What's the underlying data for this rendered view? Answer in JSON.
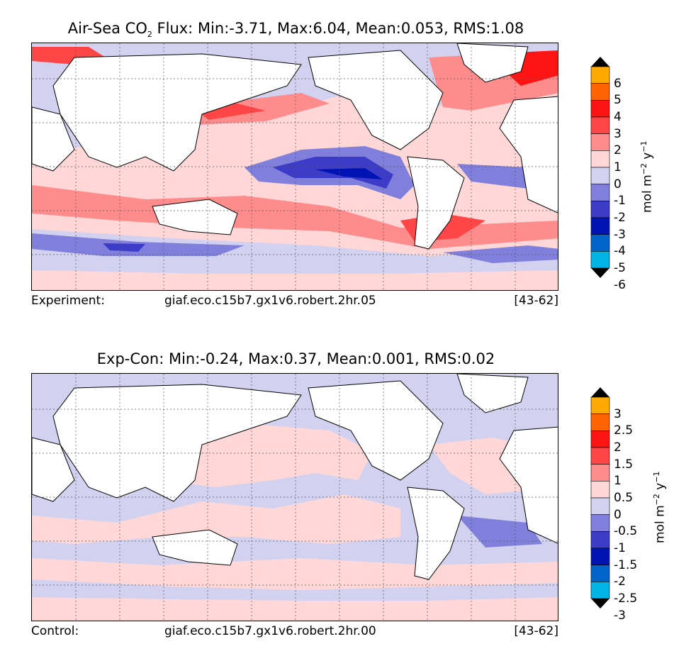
{
  "panels": [
    {
      "title_prefix": "Air-Sea CO",
      "title_sub": "2",
      "title_rest": " Flux: Min:-3.71, Max:6.04, Mean:0.053, RMS:1.08",
      "footer_left": "Experiment:",
      "footer_center": "giaf.eco.c15b7.gx1v6.robert.2hr.05",
      "footer_right": "[43-62]",
      "colorbar_ticks": [
        "6",
        "5",
        "4",
        "3",
        "2",
        "1",
        "0",
        "-1",
        "-2",
        "-3",
        "-4",
        "-5",
        "-6"
      ],
      "colorbar_units": "mol m",
      "colorbar_exp1": "−2",
      "colorbar_mid": " y",
      "colorbar_exp2": "−1"
    },
    {
      "title": "Exp-Con: Min:-0.24, Max:0.37, Mean:0.001, RMS:0.02",
      "footer_left": "Control:",
      "footer_center": "giaf.eco.c15b7.gx1v6.robert.2hr.00",
      "footer_right": "[43-62]",
      "colorbar_ticks": [
        "3",
        "2.5",
        "2",
        "1.5",
        "1",
        "0.5",
        "0",
        "-0.5",
        "-1",
        "-1.5",
        "-2",
        "-2.5",
        "-3"
      ],
      "colorbar_units": "mol m",
      "colorbar_exp1": "−2",
      "colorbar_mid": " y",
      "colorbar_exp2": "−1"
    }
  ],
  "colormap": [
    "#00ffff",
    "#00b4e6",
    "#0064c8",
    "#0014b4",
    "#3c3cc8",
    "#8080dc",
    "#d2d2f0",
    "#ffd7d7",
    "#ff8c8c",
    "#ff4646",
    "#ff1414",
    "#ff6400",
    "#ffaa00",
    "#ffff00"
  ],
  "colors": {
    "land": "#ffffff",
    "coast": "#000000",
    "grid": "#555555"
  }
}
